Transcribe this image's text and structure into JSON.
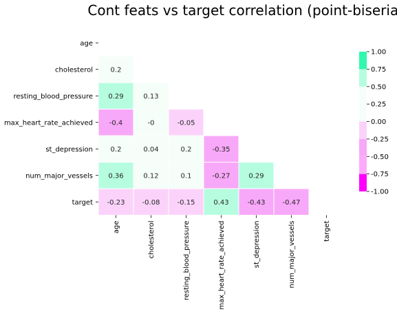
{
  "chart_data": {
    "type": "heatmap",
    "title": "Cont feats vs target correlation (point-biserial)",
    "xlabel": "",
    "ylabel": "",
    "rows": [
      "age",
      "cholesterol",
      "resting_blood_pressure",
      "max_heart_rate_achieved",
      "st_depression",
      "num_major_vessels",
      "target"
    ],
    "columns": [
      "age",
      "cholesterol",
      "resting_blood_pressure",
      "max_heart_rate_achieved",
      "st_depression",
      "num_major_vessels",
      "target"
    ],
    "mask": "upper-triangle-including-diagonal",
    "values": [
      [
        null,
        null,
        null,
        null,
        null,
        null,
        null
      ],
      [
        0.2,
        null,
        null,
        null,
        null,
        null,
        null
      ],
      [
        0.29,
        0.13,
        null,
        null,
        null,
        null,
        null
      ],
      [
        -0.4,
        -0.0,
        -0.05,
        null,
        null,
        null,
        null
      ],
      [
        0.2,
        0.04,
        0.2,
        -0.35,
        null,
        null,
        null
      ],
      [
        0.36,
        0.12,
        0.1,
        -0.27,
        0.29,
        null,
        null
      ],
      [
        -0.23,
        -0.08,
        -0.15,
        0.43,
        -0.43,
        -0.47,
        null
      ]
    ],
    "value_labels": [
      [
        null,
        null,
        null,
        null,
        null,
        null,
        null
      ],
      [
        "0.2",
        null,
        null,
        null,
        null,
        null,
        null
      ],
      [
        "0.29",
        "0.13",
        null,
        null,
        null,
        null,
        null
      ],
      [
        "-0.4",
        "-0",
        "-0.05",
        null,
        null,
        null,
        null
      ],
      [
        "0.2",
        "0.04",
        "0.2",
        "-0.35",
        null,
        null,
        null
      ],
      [
        "0.36",
        "0.12",
        "0.1",
        "-0.27",
        "0.29",
        null,
        null
      ],
      [
        "-0.23",
        "-0.08",
        "-0.15",
        "0.43",
        "-0.43",
        "-0.47",
        null
      ]
    ],
    "colorbar": {
      "range": [
        -1.0,
        1.0
      ],
      "ticks": [
        "1.00",
        "0.75",
        "0.50",
        "0.25",
        "0.00",
        "-0.25",
        "-0.50",
        "-0.75",
        "-1.00"
      ],
      "bins": [
        {
          "from": -1.0,
          "to": -0.75,
          "color": "#ff00ff"
        },
        {
          "from": -0.75,
          "to": -0.5,
          "color": "#fcaafb"
        },
        {
          "from": -0.5,
          "to": -0.25,
          "color": "#f8a8f8"
        },
        {
          "from": -0.25,
          "to": 0.0,
          "color": "#fbd3fa"
        },
        {
          "from": 0.0,
          "to": 0.25,
          "color": "#f5fef9"
        },
        {
          "from": 0.25,
          "to": 0.5,
          "color": "#f5fef9"
        },
        {
          "from": 0.5,
          "to": 0.75,
          "color": "#b6fde0"
        },
        {
          "from": 0.75,
          "to": 1.0,
          "color": "#31f8ad"
        }
      ]
    },
    "cell_colors": {
      "pos_low": "#f5fef9",
      "pos_mid": "#b6fde0",
      "neg_low": "#fbd3fa",
      "neg_mid": "#f8a8f8",
      "grid": "#ffffff"
    }
  }
}
